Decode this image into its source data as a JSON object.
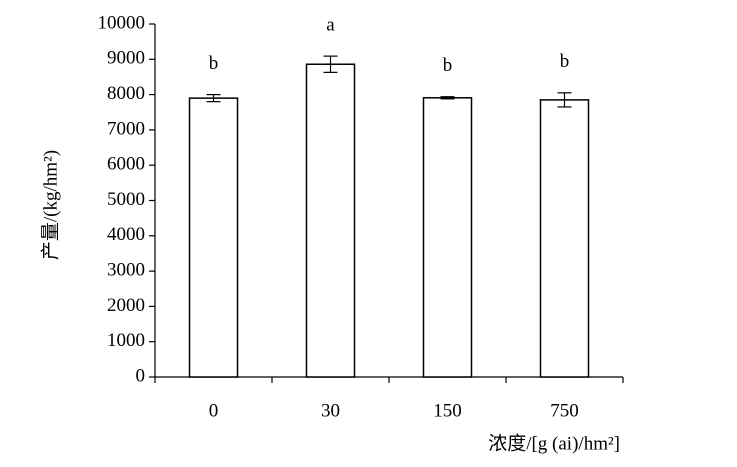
{
  "chart_data": {
    "type": "bar",
    "categories": [
      "0",
      "30",
      "150",
      "750"
    ],
    "values": [
      7900,
      8860,
      7910,
      7850
    ],
    "errors": [
      100,
      230,
      30,
      200
    ],
    "annotations": [
      "b",
      "a",
      "b",
      "b"
    ],
    "color": "#ffffff",
    "x_label": "浓度/[g (ai)/hm²]",
    "y_label": "产量/(kg/hm²)",
    "ylim": [
      0,
      10000
    ],
    "yticks": [
      0,
      1000,
      2000,
      3000,
      4000,
      5000,
      6000,
      7000,
      8000,
      9000,
      10000
    ],
    "grid": false
  }
}
